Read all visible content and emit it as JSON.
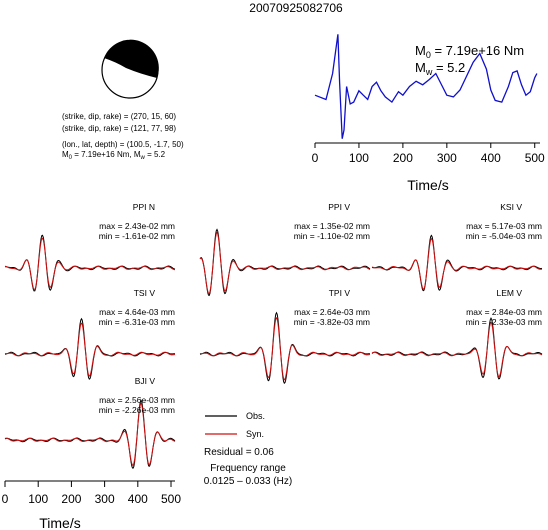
{
  "title": "20070925082706",
  "colors": {
    "observed": "#000000",
    "synthetic": "#d01010",
    "stf": "#1010cc",
    "beachball": "#000000"
  },
  "mechanism": {
    "line1": "(strike, dip, rake) = (270, 15, 60)",
    "line2": "(strike, dip, rake) = (121, 77, 98)",
    "line3": "(lon., lat, depth) = (100.5, -1.7, 50)",
    "m0_prefix": "M",
    "m0_sub": "0",
    "m0_value": " = 7.19e+16 Nm, M",
    "mw_sub": "w",
    "mw_value": " = 5.2"
  },
  "stf": {
    "m0_prefix": "M",
    "m0_sub": "0",
    "m0_value": " = 7.19e+16 Nm",
    "mw_prefix": "M",
    "mw_sub": "w",
    "mw_value": " = 5.2",
    "xlabel": "Time/s"
  },
  "legend": {
    "obs": "Obs.",
    "syn": "Syn.",
    "residual": "Residual = 0.06",
    "freq_title": "Frequency range",
    "freq_value": "0.0125 – 0.033 (Hz)"
  },
  "chart_data": [
    {
      "type": "line",
      "id": "stf",
      "title": "",
      "xlabel": "Time/s",
      "ylabel": "",
      "xlim": [
        0,
        512
      ],
      "xticks": [
        0,
        100,
        200,
        300,
        400,
        500
      ],
      "series": [
        {
          "name": "",
          "x": [
            0,
            25,
            40,
            52,
            56,
            62,
            66,
            72,
            80,
            88,
            100,
            110,
            120,
            130,
            140,
            150,
            160,
            175,
            190,
            200,
            215,
            230,
            245,
            260,
            275,
            290,
            300,
            315,
            330,
            345,
            360,
            375,
            390,
            400,
            410,
            425,
            440,
            450,
            460,
            470,
            480,
            490,
            500,
            505
          ],
          "y": [
            0.3,
            0.25,
            0.55,
            1.0,
            0.45,
            -0.2,
            -0.1,
            0.4,
            0.2,
            0.22,
            0.35,
            0.3,
            0.25,
            0.4,
            0.45,
            0.35,
            0.28,
            0.22,
            0.34,
            0.3,
            0.4,
            0.46,
            0.42,
            0.48,
            0.55,
            0.4,
            0.3,
            0.28,
            0.36,
            0.52,
            0.68,
            0.78,
            0.6,
            0.36,
            0.24,
            0.22,
            0.4,
            0.56,
            0.58,
            0.42,
            0.3,
            0.34,
            0.5,
            0.55
          ]
        }
      ]
    },
    {
      "type": "line",
      "id": "waveforms",
      "title": "",
      "xlabel": "Time/s",
      "ylabel": "",
      "xlim": [
        0,
        512
      ],
      "xticks": [
        0,
        100,
        200,
        300,
        400,
        500
      ],
      "traces": [
        {
          "station": "PPI N",
          "max": "max = 2.43e-02 mm",
          "min": "min = -1.61e-02 mm"
        },
        {
          "station": "PPI V",
          "max": "max = 1.35e-02 mm",
          "min": "min = -1.10e-02 mm"
        },
        {
          "station": "KSI V",
          "max": "max = 5.17e-03 mm",
          "min": "min = -5.04e-03 mm"
        },
        {
          "station": "TSI V",
          "max": "max = 4.64e-03 mm",
          "min": "min = -6.31e-03 mm"
        },
        {
          "station": "TPI V",
          "max": "max = 2.64e-03 mm",
          "min": "min = -3.82e-03 mm"
        },
        {
          "station": "LEM V",
          "max": "max = 2.84e-03 mm",
          "min": "min = -2.33e-03 mm"
        },
        {
          "station": "BJI V",
          "max": "max = 2.56e-03 mm",
          "min": "min = -2.26e-03 mm"
        }
      ]
    }
  ]
}
